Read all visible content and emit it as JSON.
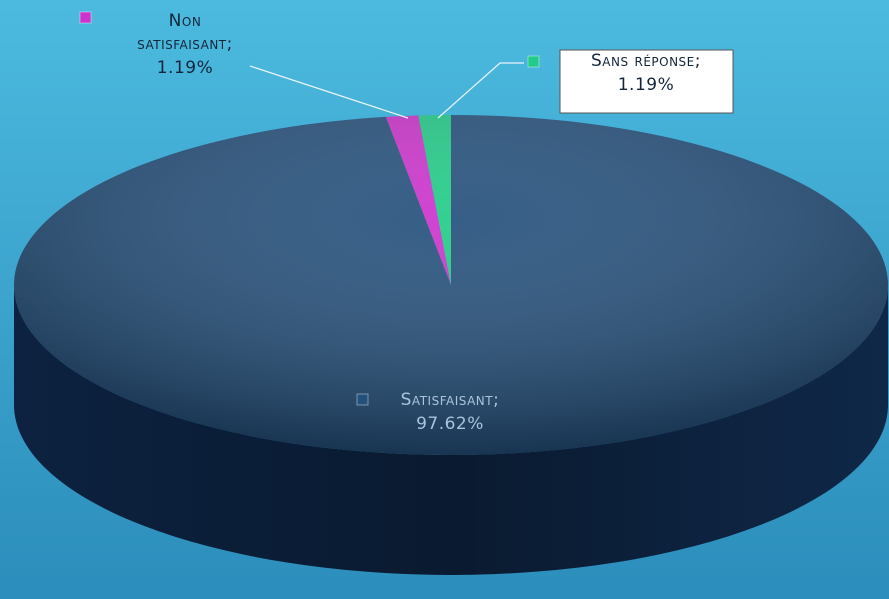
{
  "chart_data": {
    "type": "pie",
    "categories": [
      "Satisfaisant",
      "Non satisfaisant",
      "Sans réponse"
    ],
    "values": [
      97.62,
      1.19,
      1.19
    ],
    "value_labels": [
      "97.62%",
      "1.19%",
      "1.19%"
    ],
    "label_separator": ";",
    "colors": [
      "#24507c",
      "#cc33cc",
      "#22cc88"
    ]
  }
}
